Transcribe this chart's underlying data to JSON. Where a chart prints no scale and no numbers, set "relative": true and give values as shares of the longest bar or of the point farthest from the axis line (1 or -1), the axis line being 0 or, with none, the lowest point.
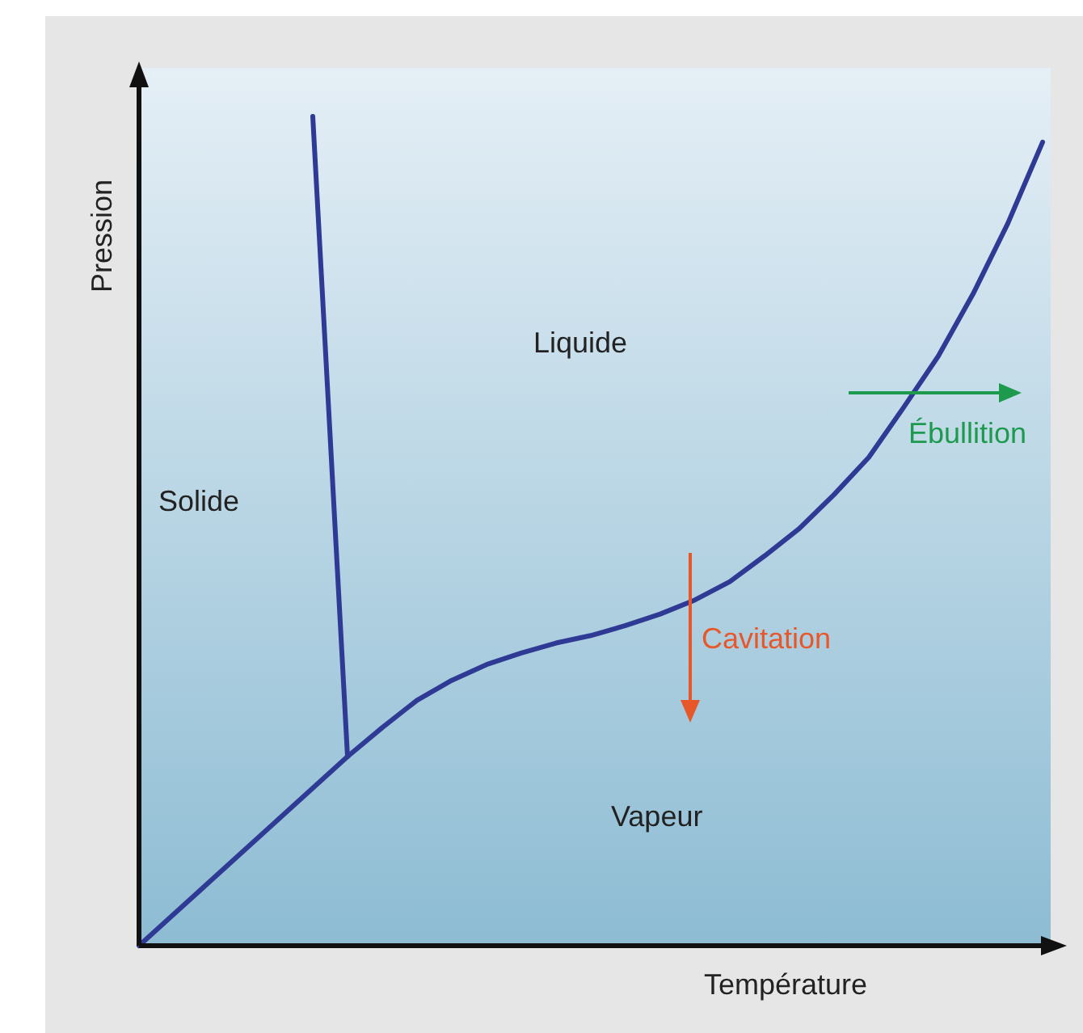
{
  "chart_data": {
    "type": "line",
    "relative": true,
    "xlabel": "Température",
    "ylabel": "Pression",
    "line_style": "solid",
    "categories": [
      null,
      null,
      null,
      null,
      null,
      null,
      null,
      null,
      null,
      null,
      null,
      null,
      null,
      null,
      null,
      null,
      null,
      null,
      null,
      null,
      null,
      null,
      null,
      null,
      null,
      null,
      null
    ],
    "series": [
      {
        "color": "#2e3a94",
        "values": [
          0,
          0.038,
          0.076,
          0.114,
          0.152,
          0.19,
          0.228,
          0.263,
          0.296,
          0.32,
          0.339,
          0.353,
          0.365,
          0.374,
          0.386,
          0.4,
          0.417,
          0.439,
          0.47,
          0.503,
          0.544,
          0.589,
          0.649,
          0.711,
          0.786,
          0.871,
          0.969
        ]
      },
      {
        "color": "#2e3a94",
        "values": [
          null,
          null,
          null,
          null,
          null,
          1,
          0.228,
          null,
          null,
          null,
          null,
          null,
          null,
          null,
          null,
          null,
          null,
          null,
          null,
          null,
          null,
          null,
          null,
          null,
          null,
          null,
          null
        ]
      }
    ],
    "annotations": [
      "Liquide",
      "Solide",
      "Vapeur",
      "Ébullition",
      "Cavitation"
    ]
  }
}
